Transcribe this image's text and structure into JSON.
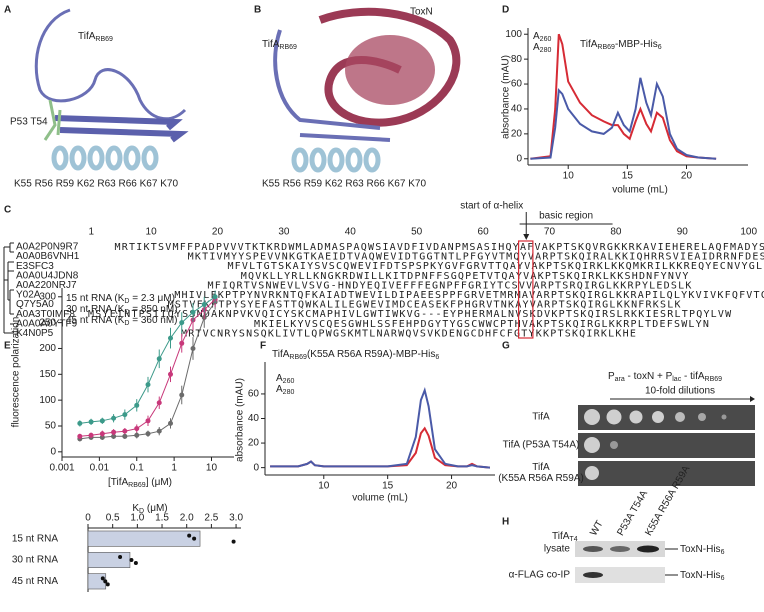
{
  "panel_labels": [
    "A",
    "B",
    "C",
    "D",
    "E",
    "F",
    "G",
    "H"
  ],
  "structure_a": {
    "protein": [
      "TifA",
      "RB69"
    ],
    "mutant": "P53 T54",
    "residues": "K55 R56 R59 K62 R63 R66 K67 K70"
  },
  "structure_b": {
    "toxin": "ToxN",
    "protein": [
      "TifA",
      "RB69"
    ],
    "residues": "K55 R56 R59 K62 R63 R66 K67 K70"
  },
  "alignment": {
    "positions": [
      1,
      10,
      20,
      30,
      40,
      50,
      60,
      70,
      80,
      90,
      100
    ],
    "helix_label": "start of α-helix",
    "region_label": "basic region",
    "rows": [
      {
        "id": "A0A2P0N9R7",
        "seq": "MRTIKTSVMFFPADPVVVTKTKRDWMLADMASPAQWSIAVDFIVDANPMSASIHQYAFVAKPTSKQVRGKKRKAVIEHERELAQFMADYSHYL"
      },
      {
        "id": "A0A0B6VNH1",
        "seq": "MKTIVMYYSPEVVNKGTKAEIDTVAQWEVIDTGGTNTLPFGYVTMQYVARPTSKQIRALKKIQHRRSVIEAIDRRNFDESWEGIHGDIGL"
      },
      {
        "id": "E3SFC3",
        "seq": "MFVLTGTSKAIYSVSCQWEVIFDTSPSPKYGVFGRVTTQAYVAKPTSKQIRKLKKQMKRILKKREQYECNVYGL"
      },
      {
        "id": "A0A0U4JDN8",
        "seq": "MQVKLLYRLLKNGKRDWILLKITDPNFFSGQPETVTQAYVAKPTSKQIRKLKKSHDNFYNVY"
      },
      {
        "id": "A0A220NRJ7",
        "seq": "MFIQRTVSNWEVLVSVG-HNDYEQIVEFFFEGNPFFGRIYTCSVVARPTSRQIRGLKKRPYLEDSLK"
      },
      {
        "id": "Y02A",
        "seq": "MHIVLFKPTPYNVRKNTQFKAIADTWEVILDIPAEESPPFGRVETMRMAVARPTSKQIRGLKKRAPILQLYKVIVKFQFVTCDYAEILK"
      },
      {
        "id": "Q7Y5A0",
        "seq": "MSTVFKPTPYSYEFASTTQWKALILEGWEVIMDCEASEKFPHGRVTNKAYVARPTSKQIRGLKKNFRKSLK"
      },
      {
        "id": "A0A3T0IMF8",
        "seq": "MSYEINTPSIIQYSSNDAKNPVKVQICYSKCMAPHIVLGWTIWKVG---EYPHERMALNVSKDVKPTSKQIRSLRKKIESRLTPQYLVW"
      },
      {
        "id": "A0A0A0YTF9",
        "seq": "MKIELKYVSCQESGWHLSSFEHPDGYTYGSCWWCPTHVAKPTSKQIRGLKKRPLTDEFSWLYN"
      },
      {
        "id": "K4N0P5",
        "seq": "MRTVCNRYSNSQKLIVTLQPWGSKMTLNARWQVSVKDENGCDHFCFGTYKKPTSKQIRKLKHE"
      }
    ]
  },
  "chart_data": [
    {
      "type": "line",
      "title": [
        "TifA",
        "RB69",
        "-MBP-His",
        "6"
      ],
      "xlabel": "volume (mL)",
      "ylabel": "absorbance (mAU)",
      "x": [
        6.8,
        8.5,
        8.9,
        9.2,
        9.5,
        10,
        11,
        12,
        13,
        13.7,
        14.2,
        14.7,
        15.2,
        15.7,
        16.1,
        16.6,
        17,
        17.5,
        18,
        18.6,
        19.2,
        20,
        21,
        22.5
      ],
      "series": [
        {
          "name": [
            "A",
            "260"
          ],
          "color": "#d62b35",
          "values": [
            0,
            2,
            40,
            100,
            92,
            62,
            45,
            35,
            30,
            27,
            27,
            20,
            16,
            30,
            40,
            28,
            22,
            37,
            33,
            15,
            6,
            2,
            1,
            0
          ]
        },
        {
          "name": [
            "A",
            "280"
          ],
          "color": "#4a5aa8",
          "values": [
            0,
            1,
            25,
            55,
            52,
            40,
            28,
            22,
            20,
            25,
            37,
            27,
            22,
            40,
            65,
            45,
            35,
            60,
            50,
            20,
            8,
            3,
            1,
            0
          ]
        }
      ],
      "xlim": [
        6.6,
        25.2
      ],
      "ylim": [
        -5,
        105
      ],
      "xticks": [
        10,
        15,
        20
      ],
      "yticks": [
        0,
        20,
        40,
        60,
        80,
        100
      ]
    },
    {
      "type": "line",
      "xscale": "log",
      "markers": true,
      "xlabel": [
        "[TifA",
        "RB69",
        "] (μM)"
      ],
      "ylabel": "fluorescence polarization",
      "x": [
        0.003,
        0.006,
        0.012,
        0.024,
        0.048,
        0.1,
        0.2,
        0.4,
        0.8,
        1.6,
        3.2,
        6.4,
        12.5
      ],
      "series": [
        {
          "name": [
            "15 nt RNA (K",
            "D",
            " = 2.3 μM)"
          ],
          "color": "#6b6b6b",
          "values": [
            25,
            28,
            28,
            30,
            30,
            32,
            35,
            40,
            55,
            110,
            200,
            260,
            290
          ],
          "errors": [
            5,
            5,
            5,
            5,
            5,
            6,
            6,
            8,
            10,
            18,
            22,
            20,
            15
          ]
        },
        {
          "name": [
            "30 nt RNA (K",
            "D",
            " = 850 nM)"
          ],
          "color": "#c8387a",
          "values": [
            30,
            32,
            35,
            38,
            40,
            45,
            60,
            95,
            150,
            210,
            255,
            275,
            295
          ],
          "errors": [
            5,
            5,
            6,
            6,
            6,
            8,
            10,
            12,
            15,
            18,
            20,
            18,
            15
          ]
        },
        {
          "name": [
            "45 nt RNA (K",
            "D",
            " = 360 nM)"
          ],
          "color": "#3c9a8a",
          "values": [
            55,
            58,
            60,
            65,
            72,
            90,
            130,
            180,
            220,
            250,
            270,
            285,
            300
          ],
          "errors": [
            6,
            6,
            6,
            8,
            10,
            12,
            15,
            18,
            20,
            20,
            18,
            15,
            12
          ]
        }
      ],
      "xlim": [
        0.001,
        40
      ],
      "ylim": [
        -10,
        317
      ],
      "xticks": [
        0.001,
        0.01,
        0.1,
        1,
        10
      ],
      "yticks": [
        0,
        50,
        100,
        150,
        200,
        250,
        300
      ]
    },
    {
      "type": "bar",
      "orientation": "horizontal",
      "xlabel": [
        "K",
        "D",
        " (μM)"
      ],
      "categories": [
        "15 nt RNA",
        "30 nt RNA",
        "45 nt RNA"
      ],
      "values": [
        2.27,
        0.85,
        0.36
      ],
      "points": [
        [
          2.05,
          2.15,
          2.95
        ],
        [
          0.65,
          0.88,
          0.97
        ],
        [
          0.3,
          0.35,
          0.4
        ]
      ],
      "color": "#c9d1e3",
      "xlim": [
        0,
        3.1
      ],
      "xticks": [
        0,
        0.5,
        {
          "value": 1,
          "label": "1.0"
        },
        1.5,
        {
          "value": 2,
          "label": "2.0"
        },
        2.5,
        {
          "value": 3,
          "label": "3.0"
        }
      ]
    },
    {
      "type": "line",
      "title": [
        "TifA",
        "RB69",
        "(K55A R56A R59A)-MBP-His",
        "6"
      ],
      "xlabel": "volume (mL)",
      "ylabel": "absorbance (mAU)",
      "x": [
        5.8,
        8,
        8.7,
        9,
        9.3,
        10,
        12,
        15,
        16.5,
        17.2,
        17.6,
        17.9,
        18.2,
        18.7,
        19.5,
        20.5,
        21.2,
        21.6,
        22,
        23
      ],
      "series": [
        {
          "name": [
            "A",
            "260"
          ],
          "color": "#d62b35",
          "values": [
            1,
            1,
            3,
            5,
            2,
            1,
            1,
            1,
            2,
            12,
            28,
            32,
            26,
            8,
            2,
            1,
            1,
            3,
            1,
            0
          ]
        },
        {
          "name": [
            "A",
            "280"
          ],
          "color": "#4a5aa8",
          "values": [
            1,
            1,
            3,
            5,
            2,
            1,
            1,
            1,
            3,
            25,
            55,
            63,
            50,
            15,
            3,
            1,
            1,
            2,
            1,
            0
          ]
        }
      ],
      "xlim": [
        5.4,
        23.4
      ],
      "ylim": [
        -6,
        86
      ],
      "xticks": [
        10,
        15,
        20
      ],
      "yticks": [
        0,
        20,
        40,
        60
      ]
    }
  ],
  "spot_assay": {
    "header": [
      "P",
      "ara",
      " - toxN + P",
      "lac",
      " - tifA",
      "RB69"
    ],
    "dilution": "10-fold dilutions",
    "rows": [
      [
        "TifA"
      ],
      [
        "TifA (P53A T54A)"
      ],
      [
        "TifA",
        "(K55A R56A R59A)"
      ]
    ]
  },
  "western": {
    "protein": [
      "TifA",
      "T4"
    ],
    "lanes": [
      "WT",
      "P53A T54A",
      "K55A R56A R59A"
    ],
    "rows": [
      "lysate",
      "α-FLAG co-IP"
    ],
    "band_labels": [
      [
        "ToxN-His",
        "6"
      ],
      [
        "ToxN-His",
        "6"
      ]
    ]
  }
}
